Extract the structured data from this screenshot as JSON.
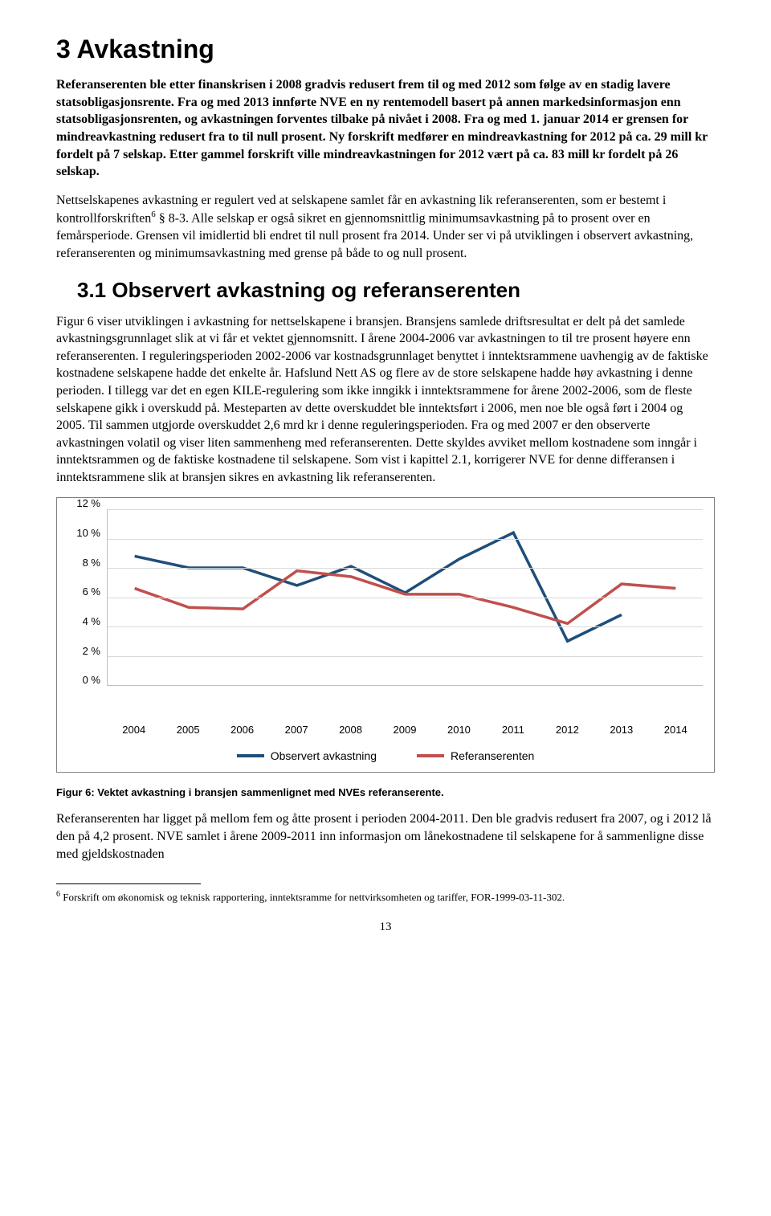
{
  "heading1": "3 Avkastning",
  "intro_bold": "Referanserenten ble etter finanskrisen i 2008 gradvis redusert frem til og med 2012 som følge av en stadig lavere statsobligasjonsrente. Fra og med 2013 innførte NVE en ny rentemodell basert på annen markedsinformasjon enn statsobligasjonsrenten, og avkastningen forventes tilbake på nivået i 2008. Fra og med 1. januar 2014 er grensen for mindreavkastning redusert fra to til null prosent. Ny forskrift medfører en mindreavkastning for 2012 på ca. 29 mill kr fordelt på 7 selskap. Etter gammel forskrift ville mindreavkastningen for 2012 vært på ca. 83 mill kr fordelt på 26 selskap.",
  "para1_a": "Nettselskapenes avkastning er regulert ved at selskapene samlet får en avkastning lik referanserenten, som er bestemt i kontrollforskriften",
  "para1_b": " § 8-3. Alle selskap er også sikret en gjennomsnittlig minimumsavkastning på to prosent over en femårsperiode. Grensen vil imidlertid bli endret til null prosent fra 2014. Under ser vi på utviklingen i observert avkastning, referanserenten og minimumsavkastning med grense på både to og null prosent.",
  "heading2": "3.1 Observert avkastning og referanserenten",
  "para2": "Figur 6 viser utviklingen i avkastning for nettselskapene i bransjen. Bransjens samlede driftsresultat er delt på det samlede avkastningsgrunnlaget slik at vi får et vektet gjennomsnitt. I årene 2004-2006 var avkastningen to til tre prosent høyere enn referanserenten. I reguleringsperioden 2002-2006 var kostnadsgrunnlaget benyttet i inntektsrammene uavhengig av de faktiske kostnadene selskapene hadde det enkelte år. Hafslund Nett AS og flere av de store selskapene hadde høy avkastning i denne perioden. I tillegg var det en egen KILE-regulering som ikke inngikk i inntektsrammene for årene 2002-2006, som de fleste selskapene gikk i overskudd på. Mesteparten av dette overskuddet ble inntektsført i 2006, men noe ble også ført i 2004 og 2005. Til sammen utgjorde overskuddet 2,6 mrd kr i denne reguleringsperioden. Fra og med 2007 er den observerte avkastningen volatil og viser liten sammenheng med referanserenten. Dette skyldes avviket mellom kostnadene som inngår i inntektsrammen og de faktiske kostnadene til selskapene. Som vist i kapittel 2.1, korrigerer NVE for denne differansen i inntektsrammene slik at bransjen sikres en avkastning lik referanserenten.",
  "chart": {
    "type": "line",
    "y_ticks": [
      "12 %",
      "10 %",
      "8 %",
      "6 %",
      "4 %",
      "2 %",
      "0 %"
    ],
    "x_labels": [
      "2004",
      "2005",
      "2006",
      "2007",
      "2008",
      "2009",
      "2010",
      "2011",
      "2012",
      "2013",
      "2014"
    ],
    "ylim": [
      0,
      12
    ],
    "series": [
      {
        "name": "Observert avkastning",
        "color": "#1f4e79",
        "values": [
          8.8,
          8.0,
          8.0,
          6.8,
          8.1,
          6.3,
          8.6,
          10.4,
          3.0,
          4.8,
          null
        ]
      },
      {
        "name": "Referanserenten",
        "color": "#c0504d",
        "values": [
          6.6,
          5.3,
          5.2,
          7.8,
          7.4,
          6.2,
          6.2,
          5.3,
          4.2,
          6.9,
          6.6
        ]
      }
    ],
    "grid_color": "#d9d9d9",
    "background": "#ffffff",
    "line_width": 3.5
  },
  "fig_caption": "Figur 6: Vektet avkastning i bransjen sammenlignet med NVEs referanserente.",
  "para3": "Referanserenten har ligget på mellom fem og åtte prosent i perioden 2004-2011. Den ble gradvis redusert fra 2007, og i 2012 lå den på 4,2 prosent. NVE samlet i årene 2009-2011 inn informasjon om lånekostnadene til selskapene for å sammenligne disse med gjeldskostnaden",
  "footnote_marker": "6",
  "footnote_text": " Forskrift om økonomisk og teknisk rapportering, inntektsramme for nettvirksomheten og tariffer, FOR-1999-03-11-302.",
  "page_number": "13"
}
